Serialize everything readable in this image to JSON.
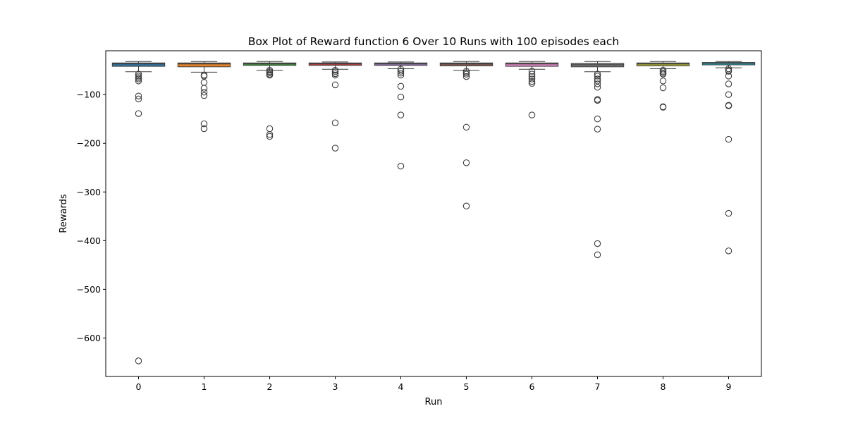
{
  "chart_data": {
    "type": "box",
    "title": "Box Plot of Reward function 6 Over 10 Runs with 100 episodes each",
    "xlabel": "Run",
    "ylabel": "Rewards",
    "ylim": [
      -679,
      -10
    ],
    "yticks": [
      -100,
      -200,
      -300,
      -400,
      -500,
      -600
    ],
    "ytick_labels": [
      "−100",
      "−200",
      "−300",
      "−400",
      "−500",
      "−600"
    ],
    "categories": [
      "0",
      "1",
      "2",
      "3",
      "4",
      "5",
      "6",
      "7",
      "8",
      "9"
    ],
    "grid": false,
    "legend": "none",
    "boxes": [
      {
        "run": "0",
        "color": "#3274a1",
        "q1": -42,
        "median": -37,
        "q3": -35,
        "whisker_low": -53,
        "whisker_high": -32,
        "outliers": [
          -58,
          -62,
          -65,
          -68,
          -72,
          -103,
          -109,
          -139,
          -647
        ]
      },
      {
        "run": "1",
        "color": "#e1812c",
        "q1": -43,
        "median": -37,
        "q3": -35,
        "whisker_low": -54,
        "whisker_high": -32,
        "outliers": [
          -60,
          -62,
          -75,
          -87,
          -95,
          -102,
          -160,
          -170
        ]
      },
      {
        "run": "2",
        "color": "#3a923a",
        "q1": -40,
        "median": -37,
        "q3": -35,
        "whisker_low": -50,
        "whisker_high": -32,
        "outliers": [
          -50,
          -53,
          -55,
          -58,
          -60,
          -170,
          -182,
          -186
        ]
      },
      {
        "run": "3",
        "color": "#c03d3e",
        "q1": -40,
        "median": -37,
        "q3": -35,
        "whisker_low": -48,
        "whisker_high": -33,
        "outliers": [
          -50,
          -53,
          -57,
          -60,
          -80,
          -158,
          -210
        ]
      },
      {
        "run": "4",
        "color": "#9372b2",
        "q1": -40,
        "median": -37,
        "q3": -35,
        "whisker_low": -47,
        "whisker_high": -33,
        "outliers": [
          -48,
          -52,
          -56,
          -60,
          -83,
          -105,
          -142,
          -247
        ]
      },
      {
        "run": "5",
        "color": "#845b53",
        "q1": -41,
        "median": -37,
        "q3": -35,
        "whisker_low": -50,
        "whisker_high": -32,
        "outliers": [
          -52,
          -55,
          -58,
          -63,
          -167,
          -240,
          -329
        ]
      },
      {
        "run": "6",
        "color": "#d684bd",
        "q1": -42,
        "median": -37,
        "q3": -35,
        "whisker_low": -48,
        "whisker_high": -32,
        "outliers": [
          -52,
          -58,
          -63,
          -68,
          -73,
          -77,
          -142
        ]
      },
      {
        "run": "7",
        "color": "#7f7f7f",
        "q1": -43,
        "median": -39,
        "q3": -36,
        "whisker_low": -53,
        "whisker_high": -32,
        "outliers": [
          -58,
          -62,
          -68,
          -72,
          -78,
          -85,
          -110,
          -112,
          -150,
          -171,
          -406,
          -429
        ]
      },
      {
        "run": "8",
        "color": "#a9aa35",
        "q1": -41,
        "median": -37,
        "q3": -35,
        "whisker_low": -47,
        "whisker_high": -32,
        "outliers": [
          -50,
          -53,
          -56,
          -58,
          -72,
          -86,
          -125,
          -126
        ]
      },
      {
        "run": "9",
        "color": "#2ea9b8",
        "q1": -39,
        "median": -36,
        "q3": -34,
        "whisker_low": -45,
        "whisker_high": -32,
        "outliers": [
          -47,
          -50,
          -52,
          -62,
          -78,
          -100,
          -122,
          -123,
          -192,
          -344,
          -421
        ]
      }
    ]
  }
}
